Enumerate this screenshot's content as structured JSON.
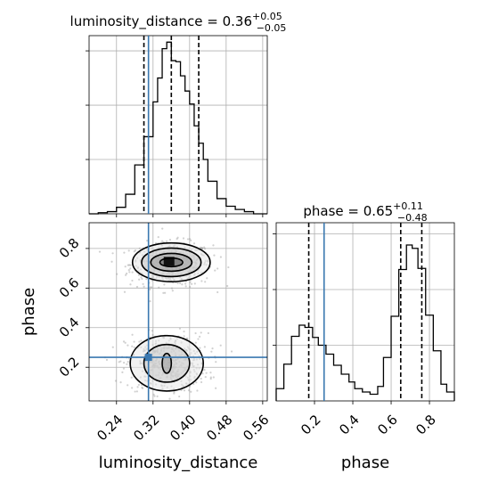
{
  "chart_data": {
    "type": "corner",
    "parameters": [
      "luminosity_distance",
      "phase"
    ],
    "truth": {
      "luminosity_distance": 0.31,
      "phase": 0.25
    },
    "colors": {
      "truth": "#3a78b0",
      "histogram": "#000000",
      "contour": "#000000",
      "scatter": "#9a9a9a",
      "grid": "#b0b0b0"
    },
    "panels": [
      {
        "id": "luminosity_distance-1d",
        "title_main": "luminosity_distance = 0.36",
        "title_sup": "+0.05",
        "title_sub": "−0.05",
        "xlim": [
          0.18,
          0.57
        ],
        "quantiles": [
          0.3,
          0.36,
          0.42
        ],
        "bin_edges": [
          0.18,
          0.2,
          0.22,
          0.24,
          0.26,
          0.28,
          0.3,
          0.32,
          0.33,
          0.34,
          0.35,
          0.36,
          0.37,
          0.38,
          0.39,
          0.4,
          0.41,
          0.42,
          0.43,
          0.44,
          0.46,
          0.48,
          0.5,
          0.52,
          0.54,
          0.57
        ],
        "counts": [
          0,
          1,
          2,
          6,
          18,
          45,
          71,
          103,
          125,
          152,
          158,
          141,
          140,
          127,
          113,
          101,
          81,
          65,
          50,
          30,
          14,
          7,
          4,
          2,
          0
        ],
        "y_ticks": [
          50,
          100,
          150
        ],
        "grid_x": [
          0.24,
          0.32,
          0.4,
          0.48,
          0.56
        ],
        "grid_y": [
          50,
          100,
          150
        ],
        "ylim": [
          0,
          164
        ]
      },
      {
        "id": "phase-1d",
        "title_main": "phase = 0.65",
        "title_sup": "+0.11",
        "title_sub": "−0.48",
        "xlim": [
          0.0,
          0.93
        ],
        "quantiles": [
          0.17,
          0.65,
          0.76
        ],
        "bin_edges": [
          0.0,
          0.04,
          0.08,
          0.12,
          0.15,
          0.19,
          0.22,
          0.26,
          0.3,
          0.34,
          0.38,
          0.41,
          0.45,
          0.49,
          0.53,
          0.56,
          0.6,
          0.64,
          0.68,
          0.71,
          0.74,
          0.78,
          0.82,
          0.86,
          0.89,
          0.93
        ],
        "counts": [
          11,
          33,
          58,
          68,
          66,
          57,
          50,
          42,
          32,
          24,
          17,
          11,
          8,
          6,
          13,
          39,
          76,
          118,
          140,
          137,
          119,
          77,
          45,
          15,
          8
        ],
        "y_ticks": [
          50,
          100,
          150
        ],
        "grid_x": [
          0.2,
          0.4,
          0.6,
          0.8
        ],
        "grid_y": [
          50,
          100,
          150
        ],
        "ylim": [
          0,
          160
        ]
      },
      {
        "id": "joint-2d",
        "xlim": [
          0.18,
          0.57
        ],
        "ylim": [
          0.03,
          0.93
        ],
        "xlabel": "luminosity_distance",
        "ylabel": "phase",
        "x_ticks": [
          "0.24",
          "0.32",
          "0.40",
          "0.48",
          "0.56"
        ],
        "y_ticks": [
          "0.2",
          "0.4",
          "0.6",
          "0.8"
        ],
        "modes": [
          {
            "center": [
              0.36,
              0.73
            ],
            "radii": [
              [
                0.025,
                0.022
              ],
              [
                0.045,
                0.045
              ],
              [
                0.065,
                0.072
              ],
              [
                0.085,
                0.098
              ]
            ]
          },
          {
            "center": [
              0.35,
              0.22
            ],
            "radii": [
              [
                0.01,
                0.05
              ],
              [
                0.05,
                0.095
              ],
              [
                0.08,
                0.14
              ]
            ]
          }
        ],
        "density_peaks": [
          [
            0.36,
            0.73
          ],
          [
            0.34,
            0.2
          ]
        ]
      }
    ],
    "marginal_x_labels": {
      "phase": [
        "0.2",
        "0.4",
        "0.6",
        "0.8"
      ]
    },
    "marginal_xlabel_phase": "phase"
  }
}
